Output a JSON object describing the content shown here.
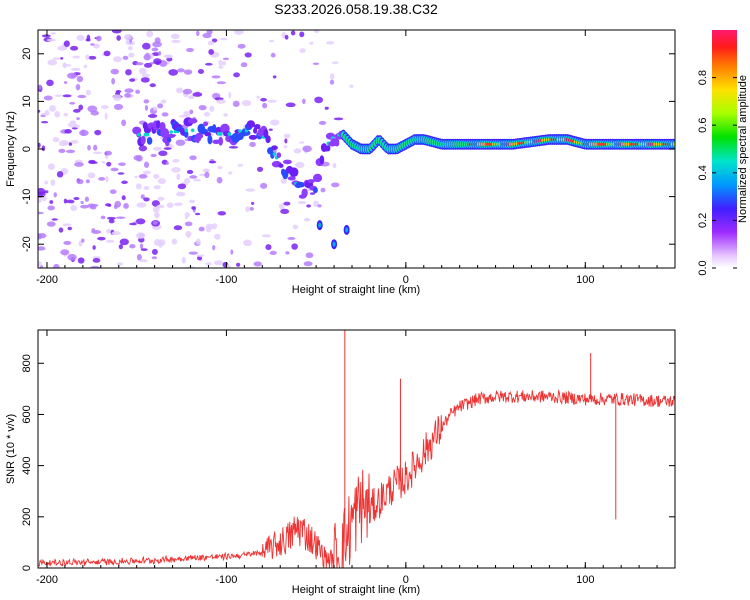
{
  "chart_data": [
    {
      "type": "heatmap",
      "title": "S233.2026.058.19.38.C32",
      "xlabel": "Height of straight line (km)",
      "ylabel": "Frequency (Hz)",
      "xlim": [
        -205,
        150
      ],
      "ylim": [
        -25,
        25
      ],
      "xticks": [
        -200,
        -100,
        0,
        100
      ],
      "yticks": [
        -20,
        -10,
        0,
        10,
        20
      ],
      "colorbar": {
        "label": "Normalized spectral amplitude",
        "range": [
          0,
          1
        ],
        "ticks": [
          0.0,
          0.2,
          0.4,
          0.6,
          0.8
        ]
      },
      "ridge": {
        "x": [
          -145,
          -120,
          -100,
          -90,
          -80,
          -75,
          -70,
          -65,
          -60,
          -55,
          -50,
          -48,
          -45,
          -42,
          -38,
          -35,
          -30,
          -25,
          -20,
          -15,
          -10,
          -5,
          0,
          5,
          10,
          20,
          40,
          60,
          80,
          90,
          100,
          110,
          120,
          150
        ],
        "y": [
          3,
          4,
          3,
          4,
          3,
          0,
          -3,
          -5,
          -8,
          -9,
          -8,
          -4,
          0,
          2,
          3,
          3,
          1,
          0,
          0,
          2,
          0,
          0,
          1,
          2,
          2,
          1,
          1,
          1,
          2,
          2,
          1,
          1,
          1,
          1
        ]
      }
    },
    {
      "type": "line",
      "xlabel": "Height of straight line (km)",
      "ylabel": "SNR (10 * v/v)",
      "xlim": [
        -205,
        150
      ],
      "ylim": [
        0,
        930
      ],
      "xticks": [
        -200,
        -100,
        0,
        100
      ],
      "yticks": [
        0,
        200,
        400,
        600,
        800
      ],
      "series": [
        {
          "name": "SNR",
          "color": "#ee3333",
          "x": [
            -205,
            -180,
            -160,
            -140,
            -120,
            -100,
            -90,
            -80,
            -75,
            -70,
            -65,
            -60,
            -55,
            -50,
            -45,
            -40,
            -35,
            -30,
            -25,
            -20,
            -15,
            -10,
            -5,
            0,
            5,
            10,
            15,
            20,
            25,
            30,
            40,
            50,
            60,
            80,
            100,
            120,
            150
          ],
          "values": [
            20,
            22,
            25,
            30,
            40,
            45,
            50,
            60,
            80,
            100,
            120,
            160,
            130,
            90,
            40,
            30,
            80,
            180,
            250,
            230,
            260,
            300,
            330,
            350,
            400,
            450,
            500,
            550,
            600,
            630,
            660,
            670,
            670,
            670,
            660,
            660,
            650
          ]
        }
      ],
      "spikes": [
        {
          "x": -34,
          "value": 930
        },
        {
          "x": -3,
          "value": 740
        },
        {
          "x": 103,
          "value": 840
        },
        {
          "x": 117,
          "value": 190
        }
      ]
    }
  ]
}
